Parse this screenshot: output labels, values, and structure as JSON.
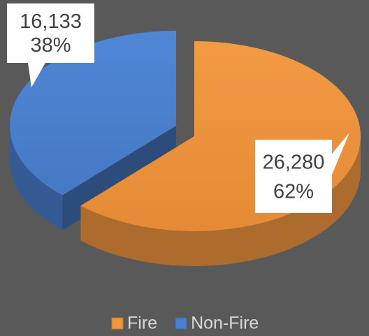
{
  "chart_data": {
    "type": "pie3d",
    "categories": [
      "Fire",
      "Non-Fire"
    ],
    "values": [
      26280,
      16133
    ],
    "value_labels": [
      "26,280",
      "16,133"
    ],
    "percents": [
      62,
      38
    ],
    "percent_labels": [
      "62%",
      "38%"
    ],
    "colors": [
      "#f0953f",
      "#4a7fce"
    ],
    "legend": "bottom"
  }
}
